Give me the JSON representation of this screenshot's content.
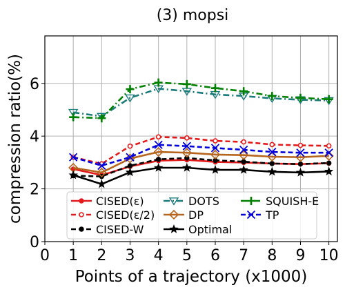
{
  "chart_data": {
    "type": "line",
    "title": "(3) mopsi",
    "xlabel": "Points of a trajectory (x1000)",
    "ylabel": "compression ratio(%)",
    "xlim": [
      0,
      10.3
    ],
    "ylim": [
      0,
      7.8
    ],
    "xticks": [
      0,
      1,
      2,
      3,
      4,
      5,
      6,
      7,
      8,
      9,
      10
    ],
    "yticks": [
      0,
      2,
      4,
      6
    ],
    "grid": true,
    "legend_position": "lower-center",
    "x": [
      1,
      2,
      3,
      4,
      5,
      6,
      7,
      8,
      9,
      10
    ],
    "series": [
      {
        "name": "CISED(ε)",
        "color": "#e31a1c",
        "dash": "solid",
        "marker": "circle-filled",
        "values": [
          2.75,
          2.52,
          2.85,
          3.07,
          3.1,
          3.02,
          3.0,
          2.96,
          2.94,
          2.97
        ]
      },
      {
        "name": "CISED(ε/2)",
        "color": "#e31a1c",
        "dash": "dashed",
        "marker": "circle-open",
        "values": [
          3.2,
          2.95,
          3.62,
          3.97,
          3.93,
          3.82,
          3.78,
          3.68,
          3.65,
          3.63
        ]
      },
      {
        "name": "CISED-W",
        "color": "#000000",
        "dash": "dashed",
        "marker": "circle-filled",
        "values": [
          2.5,
          2.47,
          2.88,
          3.12,
          3.17,
          3.08,
          3.03,
          2.96,
          2.94,
          2.98
        ]
      },
      {
        "name": "DOTS",
        "color": "#1b7a7a",
        "dash": "dashdot",
        "marker": "triangle-down-open",
        "values": [
          4.9,
          4.75,
          5.45,
          5.8,
          5.7,
          5.58,
          5.52,
          5.43,
          5.38,
          5.35
        ]
      },
      {
        "name": "DP",
        "color": "#b5651d",
        "dash": "solid",
        "marker": "diamond-open",
        "values": [
          2.8,
          2.62,
          3.15,
          3.4,
          3.37,
          3.3,
          3.28,
          3.22,
          3.2,
          3.25
        ]
      },
      {
        "name": "Optimal",
        "color": "#000000",
        "dash": "solid",
        "marker": "star",
        "values": [
          2.52,
          2.18,
          2.63,
          2.8,
          2.8,
          2.72,
          2.72,
          2.65,
          2.62,
          2.66
        ]
      },
      {
        "name": "SQUISH-E",
        "color": "#008000",
        "dash": "dashdot",
        "marker": "plus",
        "values": [
          4.72,
          4.68,
          5.78,
          6.03,
          5.97,
          5.82,
          5.7,
          5.52,
          5.45,
          5.4
        ]
      },
      {
        "name": "TP",
        "color": "#0000dd",
        "dash": "dashed",
        "marker": "x",
        "values": [
          3.2,
          2.88,
          3.2,
          3.67,
          3.62,
          3.55,
          3.48,
          3.4,
          3.37,
          3.37
        ]
      }
    ]
  }
}
